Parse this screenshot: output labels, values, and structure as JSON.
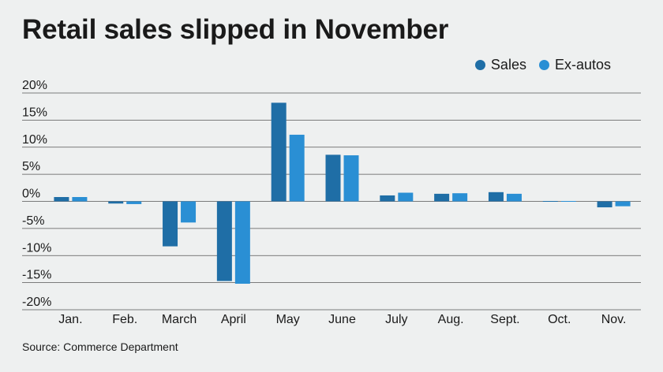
{
  "title": "Retail sales slipped in November",
  "source": "Source: Commerce Department",
  "colors": {
    "sales": "#1f6ea6",
    "ex_autos": "#2a8fd4",
    "grid": "#555555"
  },
  "chart_data": {
    "type": "bar",
    "title": "Retail sales slipped in November",
    "xlabel": "",
    "ylabel": "",
    "ylim": [
      -20,
      20
    ],
    "yticks": [
      20,
      15,
      10,
      5,
      0,
      -5,
      -10,
      -15,
      -20
    ],
    "ytick_labels": [
      "20%",
      "15%",
      "10%",
      "5%",
      "0%",
      "-5%",
      "-10%",
      "-15%",
      "-20%"
    ],
    "categories": [
      "Jan.",
      "Feb.",
      "March",
      "April",
      "May",
      "June",
      "July",
      "Aug.",
      "Sept.",
      "Oct.",
      "Nov."
    ],
    "series": [
      {
        "name": "Sales",
        "values": [
          0.8,
          -0.4,
          -8.3,
          -14.7,
          18.2,
          8.6,
          1.1,
          1.4,
          1.7,
          0.1,
          -1.1
        ]
      },
      {
        "name": "Ex-autos",
        "values": [
          0.8,
          -0.5,
          -3.9,
          -15.2,
          12.3,
          8.5,
          1.6,
          1.5,
          1.4,
          0.1,
          -0.9
        ]
      }
    ],
    "legend": "top-right",
    "grid": true
  }
}
